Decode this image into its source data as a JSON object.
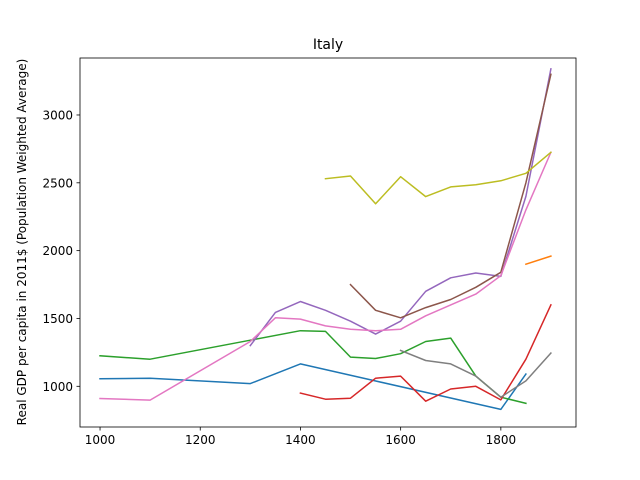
{
  "chart_data": {
    "type": "line",
    "title": "Italy",
    "xlabel": "",
    "ylabel": "Real GDP per capita in 2011$ (Population Weighted Average)",
    "xlim": [
      960,
      1950
    ],
    "ylim": [
      700,
      3420
    ],
    "xticks": [
      1000,
      1200,
      1400,
      1600,
      1800
    ],
    "yticks": [
      1000,
      1500,
      2000,
      2500,
      3000
    ],
    "grid": false,
    "legend": "none",
    "series": [
      {
        "color": "#1f77b4",
        "points": [
          [
            1000,
            1055
          ],
          [
            1100,
            1060
          ],
          [
            1300,
            1020
          ],
          [
            1400,
            1165
          ],
          [
            1800,
            830
          ],
          [
            1850,
            1090
          ]
        ]
      },
      {
        "color": "#ff7f0e",
        "points": [
          [
            1850,
            1900
          ],
          [
            1900,
            1960
          ]
        ]
      },
      {
        "color": "#2ca02c",
        "points": [
          [
            1000,
            1225
          ],
          [
            1100,
            1200
          ],
          [
            1300,
            1340
          ],
          [
            1400,
            1410
          ],
          [
            1450,
            1405
          ],
          [
            1500,
            1215
          ],
          [
            1550,
            1205
          ],
          [
            1600,
            1240
          ],
          [
            1650,
            1330
          ],
          [
            1700,
            1355
          ],
          [
            1750,
            1075
          ],
          [
            1800,
            920
          ],
          [
            1850,
            875
          ]
        ]
      },
      {
        "color": "#d62728",
        "points": [
          [
            1400,
            950
          ],
          [
            1450,
            905
          ],
          [
            1500,
            912
          ],
          [
            1550,
            1060
          ],
          [
            1600,
            1075
          ],
          [
            1650,
            890
          ],
          [
            1700,
            980
          ],
          [
            1750,
            1000
          ],
          [
            1800,
            900
          ],
          [
            1850,
            1200
          ],
          [
            1900,
            1600
          ]
        ]
      },
      {
        "color": "#9467bd",
        "points": [
          [
            1300,
            1300
          ],
          [
            1350,
            1545
          ],
          [
            1400,
            1625
          ],
          [
            1450,
            1560
          ],
          [
            1500,
            1480
          ],
          [
            1550,
            1385
          ],
          [
            1600,
            1480
          ],
          [
            1650,
            1700
          ],
          [
            1700,
            1800
          ],
          [
            1750,
            1835
          ],
          [
            1800,
            1810
          ],
          [
            1850,
            2400
          ],
          [
            1900,
            3340
          ]
        ]
      },
      {
        "color": "#8c564b",
        "points": [
          [
            1500,
            1750
          ],
          [
            1550,
            1560
          ],
          [
            1600,
            1505
          ],
          [
            1650,
            1580
          ],
          [
            1700,
            1640
          ],
          [
            1750,
            1730
          ],
          [
            1800,
            1840
          ],
          [
            1850,
            2500
          ],
          [
            1900,
            3300
          ]
        ]
      },
      {
        "color": "#e377c2",
        "points": [
          [
            1000,
            910
          ],
          [
            1100,
            898
          ],
          [
            1300,
            1330
          ],
          [
            1350,
            1505
          ],
          [
            1400,
            1495
          ],
          [
            1450,
            1445
          ],
          [
            1500,
            1420
          ],
          [
            1550,
            1410
          ],
          [
            1600,
            1420
          ],
          [
            1650,
            1520
          ],
          [
            1700,
            1600
          ],
          [
            1750,
            1680
          ],
          [
            1800,
            1815
          ],
          [
            1850,
            2300
          ],
          [
            1900,
            2725
          ]
        ]
      },
      {
        "color": "#7f7f7f",
        "points": [
          [
            1600,
            1265
          ],
          [
            1650,
            1190
          ],
          [
            1700,
            1165
          ],
          [
            1750,
            1075
          ],
          [
            1800,
            920
          ],
          [
            1850,
            1040
          ],
          [
            1900,
            1245
          ]
        ]
      },
      {
        "color": "#bcbd22",
        "points": [
          [
            1450,
            2530
          ],
          [
            1500,
            2550
          ],
          [
            1550,
            2345
          ],
          [
            1600,
            2545
          ],
          [
            1650,
            2398
          ],
          [
            1700,
            2470
          ],
          [
            1750,
            2485
          ],
          [
            1800,
            2515
          ],
          [
            1850,
            2570
          ],
          [
            1900,
            2725
          ]
        ]
      }
    ]
  }
}
